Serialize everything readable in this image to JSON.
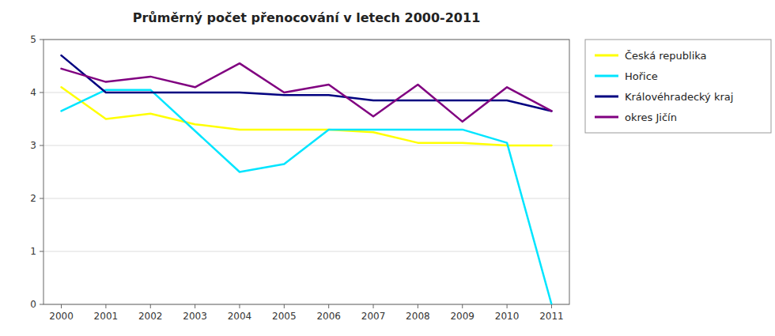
{
  "chart_data": {
    "type": "line",
    "title": "Průměrný počet přenocování v letech 2000-2011",
    "x": [
      2000,
      2001,
      2002,
      2003,
      2004,
      2005,
      2006,
      2007,
      2008,
      2009,
      2010,
      2011
    ],
    "series": [
      {
        "name": "Česká republika",
        "color": "#ffff00",
        "values": [
          4.1,
          3.5,
          3.6,
          3.4,
          3.3,
          3.3,
          3.3,
          3.25,
          3.05,
          3.05,
          3.0,
          3.0
        ]
      },
      {
        "name": "Hořice",
        "color": "#00e5ff",
        "x": [
          2000,
          2001,
          2002,
          2004,
          2005,
          2006,
          2007,
          2008,
          2009,
          2010,
          2011
        ],
        "values": [
          3.65,
          4.05,
          4.05,
          2.5,
          2.65,
          3.3,
          3.3,
          3.3,
          3.3,
          3.05,
          0.0
        ]
      },
      {
        "name": "Královéhradecký kraj",
        "color": "#000080",
        "values": [
          4.7,
          4.0,
          4.0,
          4.0,
          4.0,
          3.95,
          3.95,
          3.85,
          3.85,
          3.85,
          3.85,
          3.65
        ]
      },
      {
        "name": "okres Jičín",
        "color": "#800080",
        "values": [
          4.45,
          4.2,
          4.3,
          4.1,
          4.55,
          4.0,
          4.15,
          3.55,
          4.15,
          3.45,
          4.1,
          3.65
        ]
      }
    ],
    "xlim": [
      1999.6,
      2011.4
    ],
    "xticks": [
      2000,
      2001,
      2002,
      2003,
      2004,
      2005,
      2006,
      2007,
      2008,
      2009,
      2010,
      2011
    ],
    "ylim": [
      0,
      5
    ],
    "yticks": [
      0,
      1,
      2,
      3,
      4,
      5
    ],
    "grid": true,
    "legend": "right"
  }
}
